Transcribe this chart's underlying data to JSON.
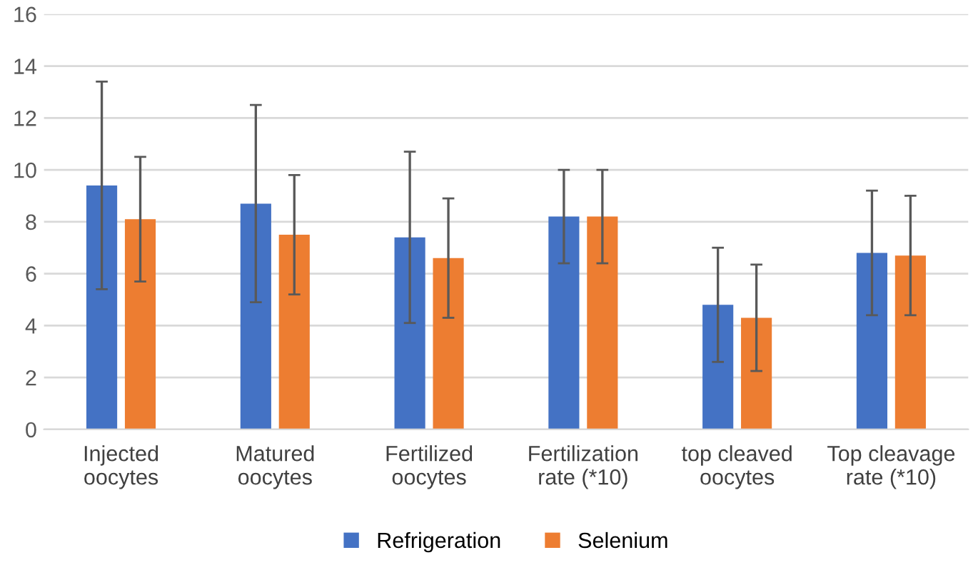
{
  "chart_data": {
    "type": "bar",
    "categories": [
      "Injected\noocytes",
      "Matured\noocytes",
      "Fertilized\noocytes",
      "Fertilization\nrate (*10)",
      "top cleaved\noocytes",
      "Top cleavage\nrate (*10)"
    ],
    "series": [
      {
        "name": "Refrigeration",
        "color": "#4472c4",
        "values": [
          9.4,
          8.7,
          7.4,
          8.2,
          4.8,
          6.8
        ],
        "errors": [
          [
            5.4,
            13.4
          ],
          [
            4.9,
            12.5
          ],
          [
            4.1,
            10.7
          ],
          [
            6.4,
            10.0
          ],
          [
            2.6,
            7.0
          ],
          [
            4.4,
            9.2
          ]
        ]
      },
      {
        "name": "Selenium",
        "color": "#ed7d31",
        "values": [
          8.1,
          7.5,
          6.6,
          8.2,
          4.3,
          6.7
        ],
        "errors": [
          [
            5.7,
            10.5
          ],
          [
            5.2,
            9.8
          ],
          [
            4.3,
            8.9
          ],
          [
            6.4,
            10.0
          ],
          [
            2.25,
            6.35
          ],
          [
            4.4,
            9.0
          ]
        ]
      }
    ],
    "ylim": [
      0,
      16
    ],
    "yticks": [
      0,
      2,
      4,
      6,
      8,
      10,
      12,
      14,
      16
    ],
    "grid": "y",
    "legend": "bottom"
  }
}
